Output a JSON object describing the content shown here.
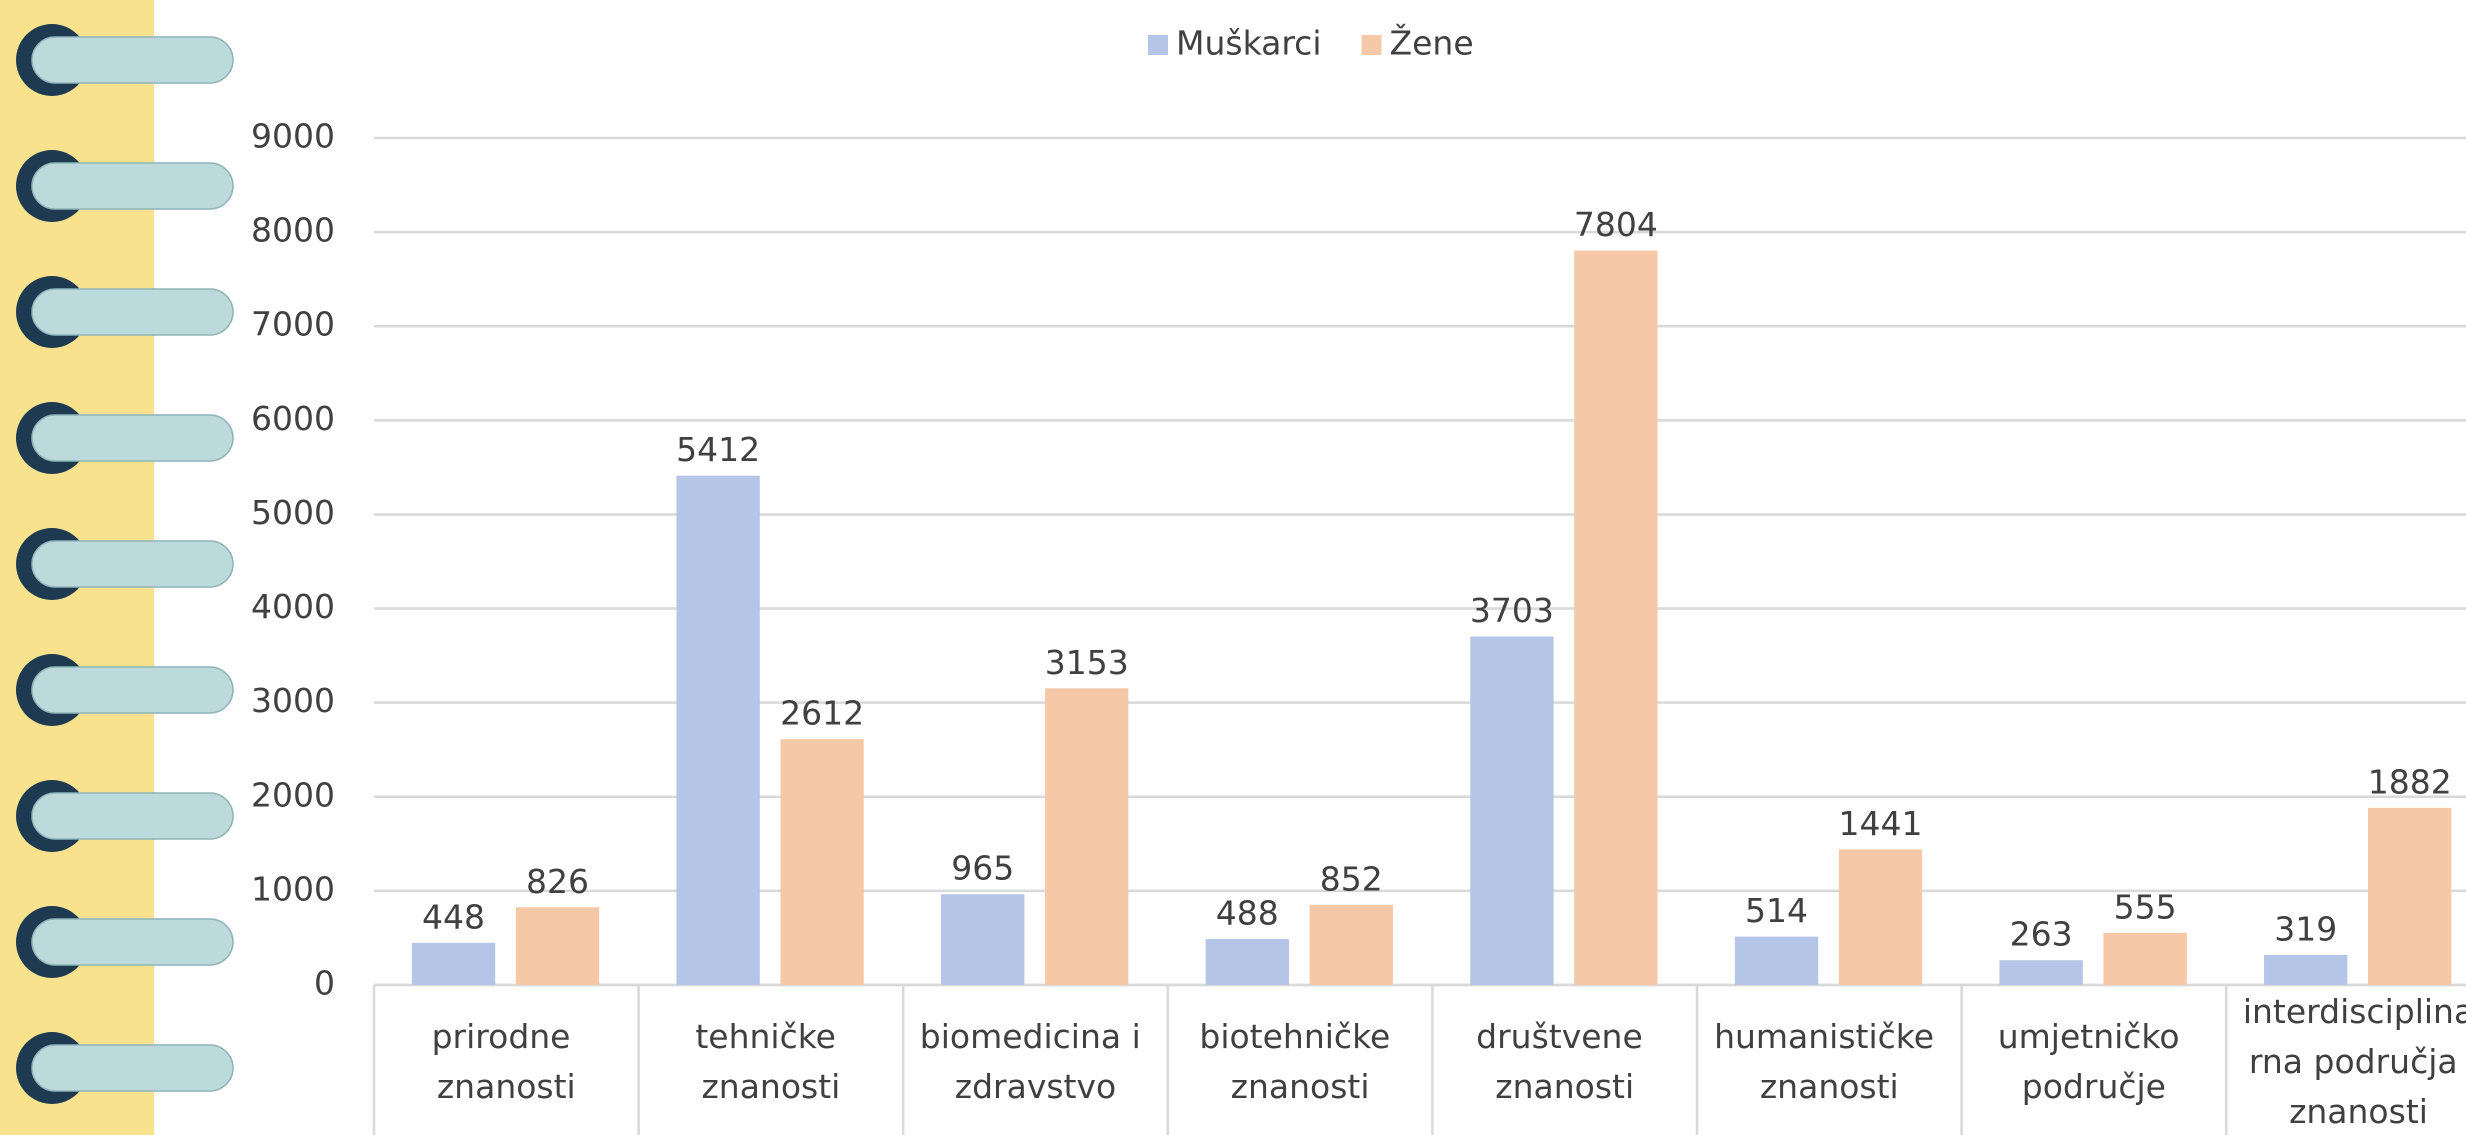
{
  "chart_data": {
    "type": "bar",
    "categories": [
      "prirodne znanosti",
      "tehničke znanosti",
      "biomedicina i zdravstvo",
      "biotehničke znanosti",
      "društvene znanosti",
      "humanističke znanosti",
      "umjetničko područje",
      "interdisciplinarna područja znanosti"
    ],
    "series": [
      {
        "name": "Muškarci",
        "color": "#b4c5e7",
        "values": [
          448,
          5412,
          965,
          488,
          3703,
          514,
          263,
          319
        ]
      },
      {
        "name": "Žene",
        "color": "#f5c8a8",
        "values": [
          826,
          2612,
          3153,
          852,
          7804,
          1441,
          555,
          1882
        ]
      }
    ],
    "ylim": [
      0,
      9000
    ],
    "yticks": [
      0,
      1000,
      2000,
      3000,
      4000,
      5000,
      6000,
      7000,
      8000,
      9000
    ],
    "grid": true,
    "legend": "top"
  }
}
